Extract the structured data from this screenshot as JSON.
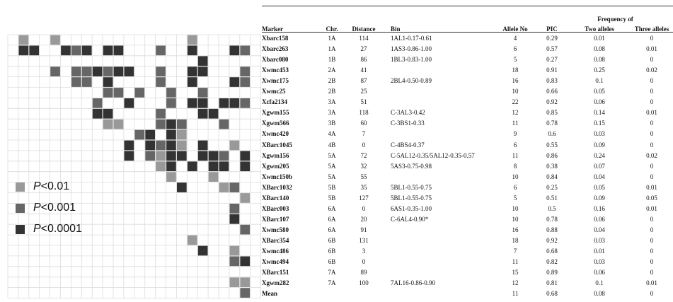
{
  "legend": [
    {
      "label_p": "P",
      "label_rest": "<0.01",
      "color": "#999999"
    },
    {
      "label_p": "P",
      "label_rest": "<0.001",
      "color": "#666666"
    },
    {
      "label_p": "P",
      "label_rest": "<0.0001",
      "color": "#333333"
    }
  ],
  "matrix": {
    "levels": {
      "1": "#999999",
      "2": "#666666",
      "3": "#333333"
    },
    "cells": [
      [
        0,
        1,
        1
      ],
      [
        0,
        4,
        1
      ],
      [
        0,
        17,
        1
      ],
      [
        1,
        1,
        3
      ],
      [
        1,
        2,
        3
      ],
      [
        1,
        5,
        3
      ],
      [
        1,
        6,
        2
      ],
      [
        1,
        7,
        3
      ],
      [
        1,
        9,
        3
      ],
      [
        1,
        10,
        3
      ],
      [
        1,
        14,
        2
      ],
      [
        1,
        17,
        3
      ],
      [
        1,
        21,
        3
      ],
      [
        1,
        22,
        2
      ],
      [
        2,
        18,
        3
      ],
      [
        3,
        4,
        2
      ],
      [
        3,
        6,
        2
      ],
      [
        3,
        7,
        2
      ],
      [
        3,
        8,
        3
      ],
      [
        3,
        9,
        2
      ],
      [
        3,
        10,
        3
      ],
      [
        3,
        11,
        3
      ],
      [
        3,
        14,
        2
      ],
      [
        3,
        17,
        3
      ],
      [
        3,
        18,
        3
      ],
      [
        3,
        22,
        2
      ],
      [
        4,
        6,
        2
      ],
      [
        4,
        7,
        2
      ],
      [
        4,
        9,
        3
      ],
      [
        4,
        14,
        2
      ],
      [
        4,
        17,
        3
      ],
      [
        4,
        21,
        3
      ],
      [
        4,
        22,
        2
      ],
      [
        5,
        9,
        2
      ],
      [
        5,
        10,
        2
      ],
      [
        5,
        12,
        2
      ],
      [
        5,
        15,
        2
      ],
      [
        5,
        18,
        2
      ],
      [
        6,
        8,
        2
      ],
      [
        6,
        11,
        3
      ],
      [
        6,
        15,
        2
      ],
      [
        6,
        17,
        3
      ],
      [
        6,
        18,
        3
      ],
      [
        6,
        20,
        3
      ],
      [
        6,
        21,
        3
      ],
      [
        6,
        22,
        2
      ],
      [
        7,
        8,
        3
      ],
      [
        7,
        9,
        3
      ],
      [
        7,
        14,
        2
      ],
      [
        7,
        18,
        3
      ],
      [
        7,
        19,
        3
      ],
      [
        8,
        9,
        1
      ],
      [
        8,
        10,
        1
      ],
      [
        8,
        14,
        2
      ],
      [
        8,
        15,
        3
      ],
      [
        8,
        16,
        2
      ],
      [
        8,
        20,
        2
      ],
      [
        9,
        12,
        2
      ],
      [
        9,
        13,
        3
      ],
      [
        9,
        15,
        3
      ],
      [
        9,
        16,
        1
      ],
      [
        10,
        11,
        3
      ],
      [
        10,
        13,
        3
      ],
      [
        10,
        14,
        2
      ],
      [
        10,
        15,
        3
      ],
      [
        10,
        16,
        1
      ],
      [
        10,
        18,
        3
      ],
      [
        10,
        21,
        1
      ],
      [
        11,
        11,
        3
      ],
      [
        11,
        13,
        2
      ],
      [
        11,
        14,
        1
      ],
      [
        11,
        15,
        3
      ],
      [
        11,
        16,
        3
      ],
      [
        11,
        18,
        3
      ],
      [
        11,
        19,
        3
      ],
      [
        11,
        20,
        2
      ],
      [
        11,
        22,
        3
      ],
      [
        12,
        14,
        1
      ],
      [
        12,
        15,
        3
      ],
      [
        12,
        17,
        3
      ],
      [
        12,
        19,
        3
      ],
      [
        12,
        20,
        3
      ],
      [
        12,
        22,
        3
      ],
      [
        13,
        15,
        1
      ],
      [
        13,
        19,
        1
      ],
      [
        14,
        16,
        3
      ],
      [
        14,
        20,
        1
      ],
      [
        14,
        21,
        2
      ],
      [
        15,
        22,
        1
      ],
      [
        16,
        21,
        2
      ],
      [
        17,
        21,
        3
      ],
      [
        18,
        22,
        2
      ],
      [
        19,
        17,
        1
      ],
      [
        20,
        18,
        3
      ],
      [
        20,
        21,
        1
      ],
      [
        21,
        21,
        2
      ],
      [
        21,
        22,
        3
      ],
      [
        23,
        21,
        1
      ],
      [
        23,
        22,
        1
      ],
      [
        24,
        22,
        2
      ]
    ]
  },
  "table": {
    "group_header": "Frequency of",
    "headers": {
      "marker": "Marker",
      "chr": "Chr.",
      "distance": "Distance",
      "bin": "Bin",
      "allele": "Allele No",
      "pic": "PIC",
      "two": "Two alleles",
      "three": "Three alleles"
    },
    "rows": [
      {
        "marker": "Xbarc158",
        "chr": "1A",
        "distance": "114",
        "bin": "1AL1-0.17-0.61",
        "allele": "4",
        "pic": "0.29",
        "two": "0.01",
        "three": "0"
      },
      {
        "marker": "Xbarc263",
        "chr": "1A",
        "distance": "27",
        "bin": "1AS3-0.86-1.00",
        "allele": "6",
        "pic": "0.57",
        "two": "0.08",
        "three": "0.01"
      },
      {
        "marker": "Xbarc080",
        "chr": "1B",
        "distance": "86",
        "bin": "1BL3-0.83-1.00",
        "allele": "5",
        "pic": "0.27",
        "two": "0.08",
        "three": "0"
      },
      {
        "marker": "Xwmc453",
        "chr": "2A",
        "distance": "41",
        "bin": "",
        "allele": "18",
        "pic": "0.91",
        "two": "0.25",
        "three": "0.02"
      },
      {
        "marker": "Xwmc175",
        "chr": "2B",
        "distance": "87",
        "bin": "2BL4-0.50-0.89",
        "allele": "16",
        "pic": "0.83",
        "two": "0.1",
        "three": "0"
      },
      {
        "marker": "Xwmc25",
        "chr": "2B",
        "distance": "25",
        "bin": "",
        "allele": "10",
        "pic": "0.66",
        "two": "0.05",
        "three": "0"
      },
      {
        "marker": "Xcfa2134",
        "chr": "3A",
        "distance": "51",
        "bin": "",
        "allele": "22",
        "pic": "0.92",
        "two": "0.06",
        "three": "0"
      },
      {
        "marker": "Xgwm155",
        "chr": "3A",
        "distance": "118",
        "bin": "C-3AL3-0.42",
        "allele": "12",
        "pic": "0.85",
        "two": "0.14",
        "three": "0.01"
      },
      {
        "marker": "Xgwm566",
        "chr": "3B",
        "distance": "60",
        "bin": "C-3BS1-0.33",
        "allele": "11",
        "pic": "0.78",
        "two": "0.15",
        "three": "0"
      },
      {
        "marker": "Xwmc420",
        "chr": "4A",
        "distance": "7",
        "bin": "",
        "allele": "9",
        "pic": "0.6",
        "two": "0.03",
        "three": "0"
      },
      {
        "marker": "XBarc1045",
        "chr": "4B",
        "distance": "0",
        "bin": "C-4BS4-0.37",
        "allele": "6",
        "pic": "0.55",
        "two": "0.09",
        "three": "0"
      },
      {
        "marker": "Xgwm156",
        "chr": "5A",
        "distance": "72",
        "bin": "C-5AL12-0.35/5AL12-0.35-0.57",
        "allele": "11",
        "pic": "0.86",
        "two": "0.24",
        "three": "0.02"
      },
      {
        "marker": "Xgwm205",
        "chr": "5A",
        "distance": "32",
        "bin": "5AS3-0.75-0.98",
        "allele": "8",
        "pic": "0.38",
        "two": "0.07",
        "three": "0"
      },
      {
        "marker": "Xwmc150b",
        "chr": "5A",
        "distance": "55",
        "bin": "",
        "allele": "10",
        "pic": "0.84",
        "two": "0.04",
        "three": "0"
      },
      {
        "marker": "XBarc1032",
        "chr": "5B",
        "distance": "35",
        "bin": "5BL1-0.55-0.75",
        "allele": "6",
        "pic": "0.25",
        "two": "0.05",
        "three": "0.01"
      },
      {
        "marker": "XBarc140",
        "chr": "5B",
        "distance": "127",
        "bin": "5BL1-0.55-0.75",
        "allele": "5",
        "pic": "0.51",
        "two": "0.09",
        "three": "0.05"
      },
      {
        "marker": "XBarc003",
        "chr": "6A",
        "distance": "0",
        "bin": "6AS1-0.35-1.00",
        "allele": "10",
        "pic": "0.5",
        "two": "0.16",
        "three": "0.01"
      },
      {
        "marker": "XBarc107",
        "chr": "6A",
        "distance": "20",
        "bin": "C-6AL4-0.90*",
        "allele": "10",
        "pic": "0.78",
        "two": "0.06",
        "three": "0"
      },
      {
        "marker": "Xwmc580",
        "chr": "6A",
        "distance": "91",
        "bin": "",
        "allele": "16",
        "pic": "0.88",
        "two": "0.04",
        "three": "0"
      },
      {
        "marker": "XBarc354",
        "chr": "6B",
        "distance": "131",
        "bin": "",
        "allele": "18",
        "pic": "0.92",
        "two": "0.03",
        "three": "0"
      },
      {
        "marker": "Xwmc486",
        "chr": "6B",
        "distance": "3",
        "bin": "",
        "allele": "7",
        "pic": "0.68",
        "two": "0.01",
        "three": "0"
      },
      {
        "marker": "Xwmc494",
        "chr": "6B",
        "distance": "0",
        "bin": "",
        "allele": "11",
        "pic": "0.82",
        "two": "0.03",
        "three": "0"
      },
      {
        "marker": "XBarc151",
        "chr": "7A",
        "distance": "89",
        "bin": "",
        "allele": "15",
        "pic": "0.89",
        "two": "0.06",
        "three": "0"
      },
      {
        "marker": "Xgwm282",
        "chr": "7A",
        "distance": "100",
        "bin": "7AL16-0.86-0.90",
        "allele": "12",
        "pic": "0.81",
        "two": "0.1",
        "three": "0.01"
      },
      {
        "marker": "Mean",
        "chr": "",
        "distance": "",
        "bin": "",
        "allele": "11",
        "pic": "0.68",
        "two": "0.08",
        "three": "0"
      }
    ]
  }
}
